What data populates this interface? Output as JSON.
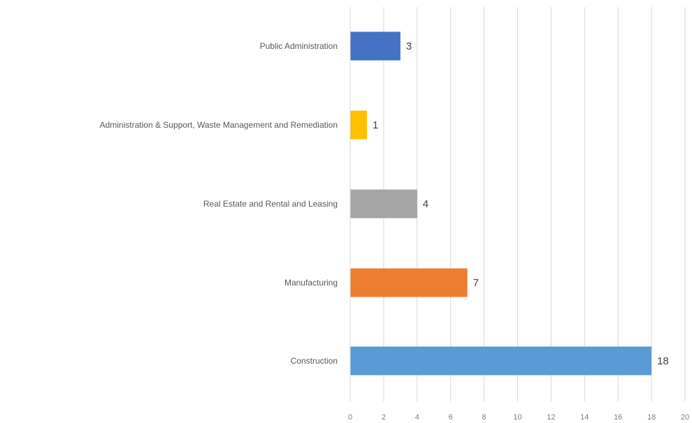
{
  "chart_data": {
    "type": "bar",
    "orientation": "horizontal",
    "categories": [
      "Public Administration",
      "Administration & Support, Waste Management and Remediation",
      "Real Estate and Rental and Leasing",
      "Manufacturing",
      "Construction"
    ],
    "values": [
      3,
      1,
      4,
      7,
      18
    ],
    "colors": [
      "#4472c4",
      "#ffc000",
      "#a5a5a5",
      "#ed7d31",
      "#5b9bd5"
    ],
    "xlim": [
      0,
      20
    ],
    "xticks": [
      "0",
      "2",
      "4",
      "6",
      "8",
      "10",
      "12",
      "14",
      "16",
      "18",
      "20"
    ],
    "grid": true,
    "legend": "none",
    "data_labels": true
  }
}
